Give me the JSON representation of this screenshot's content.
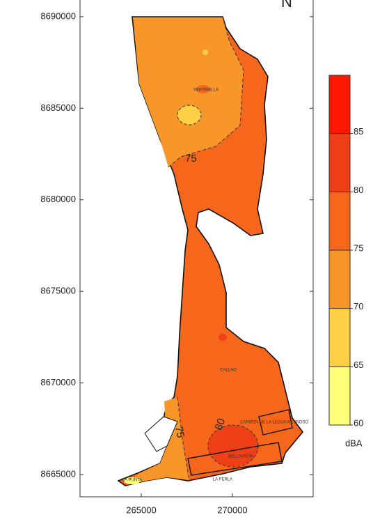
{
  "map": {
    "north": "N",
    "xlim": [
      261640,
      274430
    ],
    "ylim": [
      8663780,
      8690910
    ],
    "xticks": [
      265000,
      270000
    ],
    "yticks": [
      8665000,
      8670000,
      8675000,
      8680000,
      8685000,
      8690000
    ],
    "contour_labels": [
      75,
      75,
      80
    ],
    "places": [
      "VENTANILLA",
      "CALLAO",
      "CARMEN DE LA LEGUA REYNOSO",
      "BELLAVISTA",
      "LA PERLA",
      "LA PUNTA"
    ],
    "colorbar": {
      "clim": [
        60,
        90
      ],
      "ticks": [
        60,
        65,
        70,
        75,
        80,
        85
      ],
      "colors": [
        "#ffff7a",
        "#ffcf45",
        "#f8962a",
        "#f7671b",
        "#ef3f17",
        "#ff1800"
      ],
      "unit": "dBA"
    }
  }
}
